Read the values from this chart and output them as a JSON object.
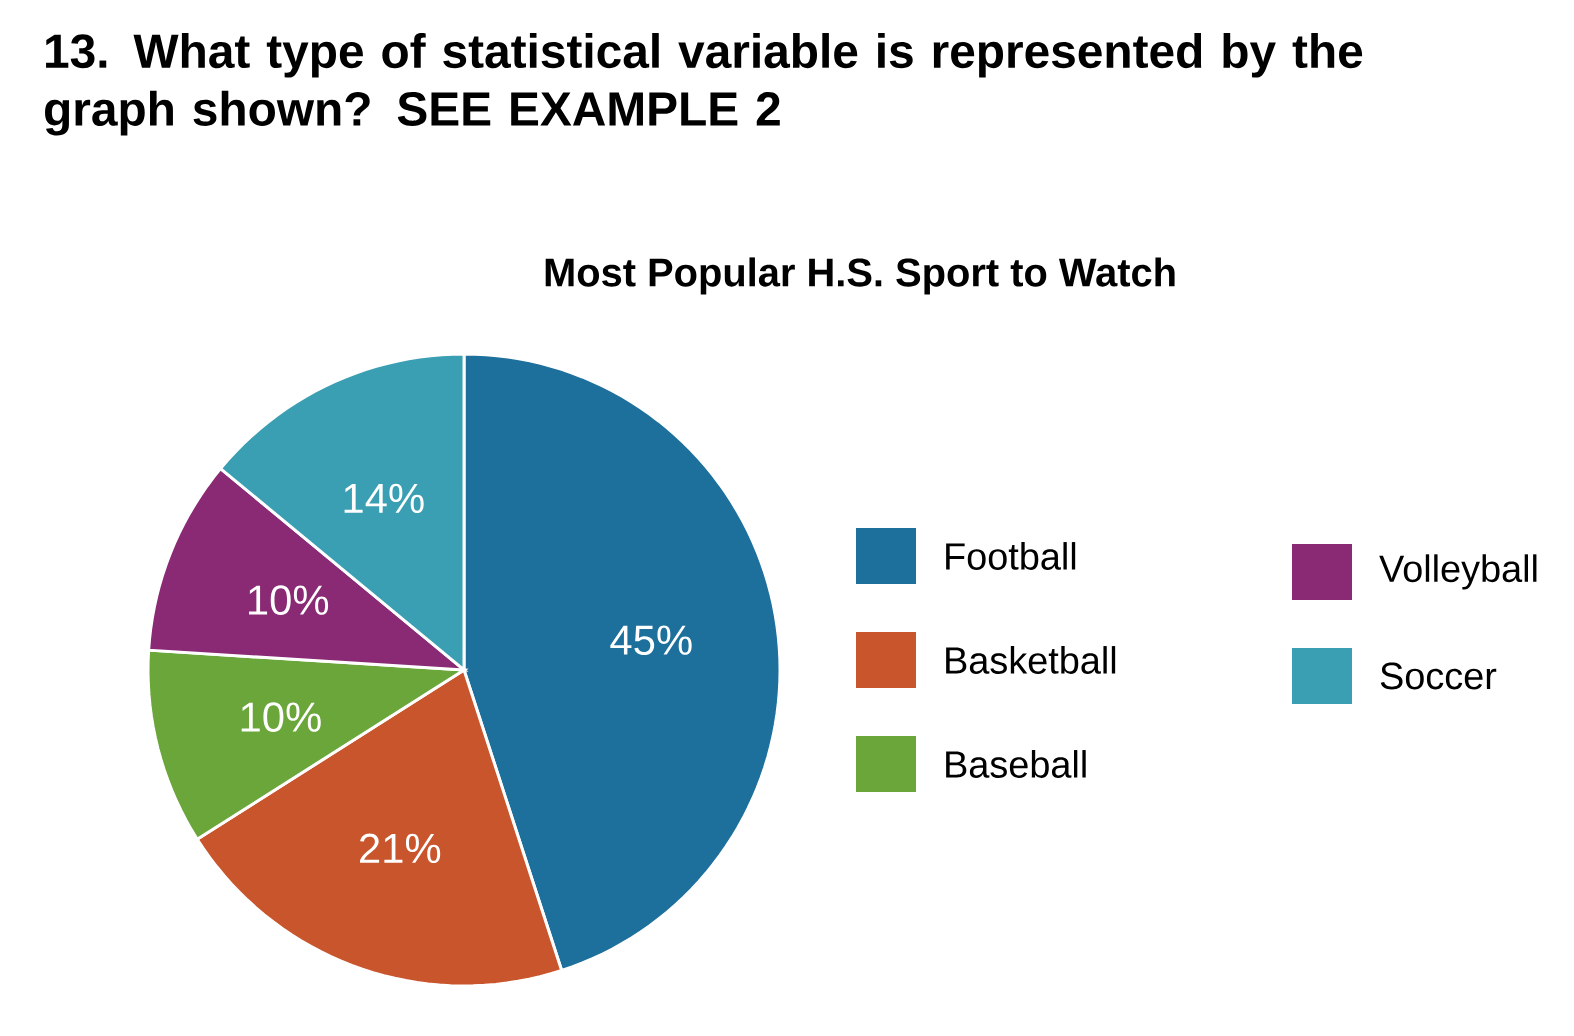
{
  "chart_data": {
    "type": "pie",
    "title": "Most Popular H.S. Sport to Watch",
    "annotations": [
      "13. What type of statistical variable is represented by the graph shown? SEE EXAMPLE 2"
    ],
    "categories": [
      "Football",
      "Basketball",
      "Baseball",
      "Volleyball",
      "Soccer"
    ],
    "values": [
      45,
      21,
      10,
      10,
      14
    ],
    "value_labels": [
      "45%",
      "21%",
      "10%",
      "10%",
      "14%"
    ],
    "colors": [
      "#1d6f9c",
      "#c8552c",
      "#6aa63a",
      "#8a2a74",
      "#3a9fb2"
    ],
    "legend": "right"
  }
}
